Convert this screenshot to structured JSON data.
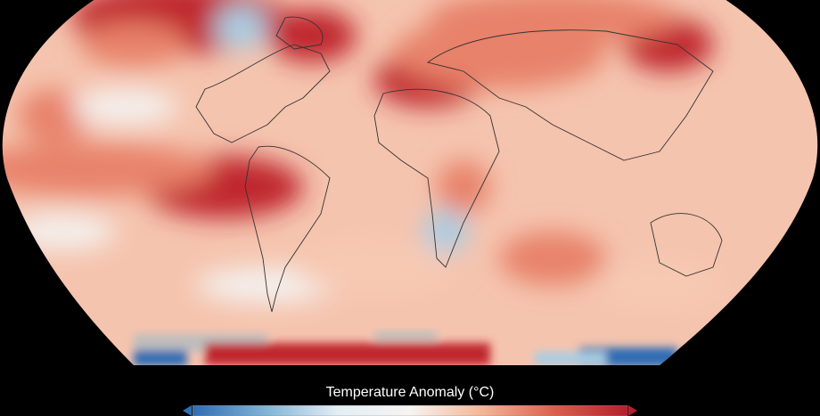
{
  "map": {
    "projection": "Robinson",
    "variable": "surface temperature anomaly",
    "colors": {
      "background": "#000000",
      "strong_warm": "#c0262d",
      "warm": "#e8826a",
      "mild_warm": "#f7c9b3",
      "neutral": "#f4f1ef",
      "cool": "#a9cde3",
      "strong_cool": "#2f6db3",
      "no_data": "#bdbdbd",
      "coastline": "#333333"
    }
  },
  "legend": {
    "title": "Temperature Anomaly (°C)",
    "colormap": [
      "#2f6db3",
      "#7fb3d6",
      "#e3eef5",
      "#f7f4f2",
      "#f4b597",
      "#d9604c",
      "#b51f2e"
    ],
    "extend": "both"
  }
}
